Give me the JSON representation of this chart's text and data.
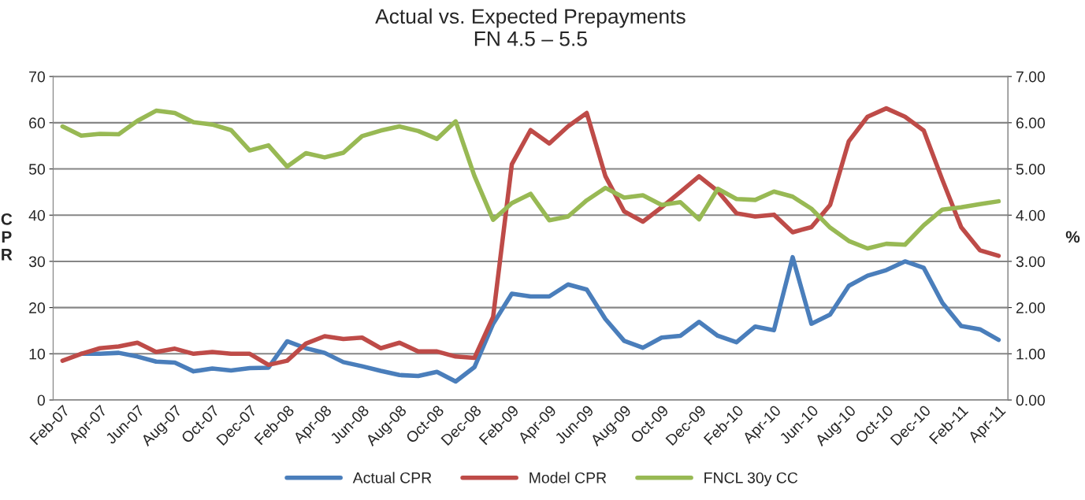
{
  "chart_data": {
    "type": "line",
    "title": "Actual vs. Expected Prepayments\nFN 4.5 – 5.5",
    "ylabel": "C\nP\nR",
    "y2label": "%",
    "categories": [
      "Feb-07",
      null,
      "Apr-07",
      null,
      "Jun-07",
      null,
      "Aug-07",
      null,
      "Oct-07",
      null,
      "Dec-07",
      null,
      "Feb-08",
      null,
      "Apr-08",
      null,
      "Jun-08",
      null,
      "Aug-08",
      null,
      "Oct-08",
      null,
      "Dec-08",
      null,
      "Feb-09",
      null,
      "Apr-09",
      null,
      "Jun-09",
      null,
      "Aug-09",
      null,
      "Oct-09",
      null,
      "Dec-09",
      null,
      "Feb-10",
      null,
      "Apr-10",
      null,
      "Jun-10",
      null,
      "Aug-10",
      null,
      "Oct-10",
      null,
      "Dec-10",
      null,
      "Feb-11",
      null,
      "Apr-11"
    ],
    "series": [
      {
        "name": "Actual CPR",
        "color": "#4a7ebb",
        "values": [
          null,
          10.0,
          10.0,
          10.2,
          9.4,
          8.3,
          8.1,
          6.2,
          6.8,
          6.4,
          6.9,
          7.0,
          12.7,
          11.2,
          10.2,
          8.2,
          7.3,
          6.3,
          5.4,
          5.2,
          6.1,
          4.0,
          7.1,
          16.5,
          23.0,
          22.4,
          22.4,
          25.0,
          23.9,
          17.5,
          12.8,
          11.3,
          13.5,
          13.9,
          16.9,
          13.9,
          12.5,
          15.9,
          15.1,
          30.9,
          16.5,
          18.5,
          24.7,
          26.9,
          28.1,
          30.0,
          28.6,
          21.0,
          16.0,
          15.3,
          13.0
        ]
      },
      {
        "name": "Model CPR",
        "color": "#be4b48",
        "values": [
          8.5,
          10.0,
          11.2,
          11.6,
          12.4,
          10.4,
          11.1,
          10.0,
          10.4,
          10.0,
          10.0,
          7.6,
          8.5,
          12.2,
          13.8,
          13.2,
          13.5,
          11.2,
          12.4,
          10.5,
          10.5,
          9.4,
          9.1,
          18.0,
          51.0,
          58.4,
          55.5,
          59.2,
          62.1,
          48.4,
          40.8,
          38.6,
          41.7,
          45.0,
          48.4,
          45.2,
          40.4,
          39.7,
          40.1,
          36.3,
          37.4,
          42.2,
          56.0,
          61.3,
          63.1,
          61.3,
          58.3,
          47.6,
          37.4,
          32.4,
          31.2
        ]
      },
      {
        "name": "FNCL 30y CC",
        "color": "#98b954",
        "axis": "y2",
        "values": [
          5.92,
          5.72,
          5.76,
          5.75,
          6.04,
          6.26,
          6.21,
          6.01,
          5.96,
          5.84,
          5.4,
          5.51,
          5.05,
          5.34,
          5.25,
          5.35,
          5.71,
          5.83,
          5.92,
          5.82,
          5.65,
          6.03,
          4.85,
          3.9,
          4.26,
          4.46,
          3.89,
          3.97,
          4.32,
          4.59,
          4.38,
          4.43,
          4.22,
          4.28,
          3.91,
          4.57,
          4.35,
          4.33,
          4.51,
          4.4,
          4.14,
          3.73,
          3.44,
          3.28,
          3.38,
          3.36,
          3.78,
          4.12,
          4.17,
          4.24,
          4.3
        ]
      }
    ],
    "ylim": [
      0,
      70
    ],
    "yticks": [
      0,
      10,
      20,
      30,
      40,
      50,
      60,
      70
    ],
    "y2lim": [
      0,
      7
    ],
    "y2ticks": [
      {
        "value": 0,
        "label": "0.00"
      },
      {
        "value": 1,
        "label": "1.00"
      },
      {
        "value": 2,
        "label": "2.00"
      },
      {
        "value": 3,
        "label": "3.00"
      },
      {
        "value": 4,
        "label": "4.00"
      },
      {
        "value": 5,
        "label": "5.00"
      },
      {
        "value": 6,
        "label": "6.00"
      },
      {
        "value": 7,
        "label": "7.00"
      }
    ],
    "grid": "y",
    "legend": "bottom",
    "marker": "none",
    "line_style": "solid"
  }
}
